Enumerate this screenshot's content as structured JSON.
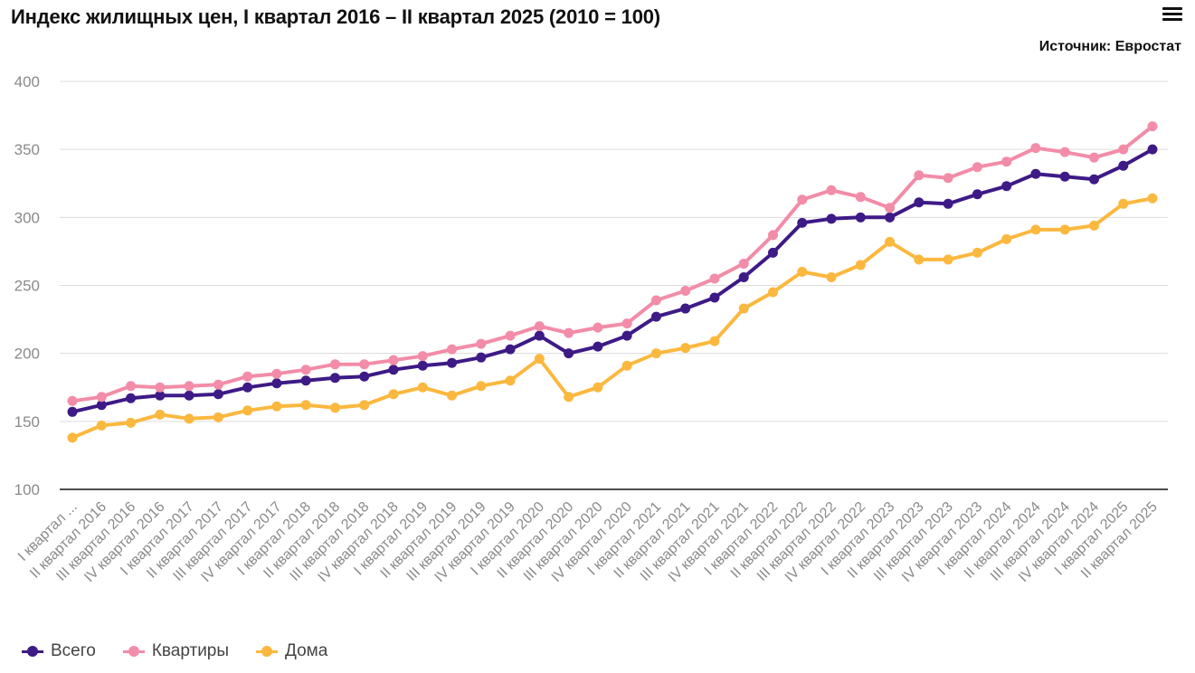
{
  "header": {
    "title": "Индекс жилищных цен, I квартал 2016 – II квартал 2025 (2010 = 100)",
    "source": "Источник: Евростат",
    "menu_icon": "hamburger-menu-icon"
  },
  "legend": [
    {
      "label": "Всего",
      "color": "#3d1a86"
    },
    {
      "label": "Квартиры",
      "color": "#f28ca8"
    },
    {
      "label": "Дома",
      "color": "#fbb83f"
    }
  ],
  "chart_data": {
    "type": "line",
    "title": "Индекс жилищных цен, I квартал 2016 – II квартал 2025 (2010 = 100)",
    "xlabel": "",
    "ylabel": "",
    "ylim": [
      100,
      400
    ],
    "yticks": [
      100,
      150,
      200,
      250,
      300,
      350,
      400
    ],
    "grid": true,
    "legend_position": "bottom-left",
    "categories": [
      "I квартал ...",
      "II квартал 2016",
      "III квартал 2016",
      "IV квартал 2016",
      "I квартал 2017",
      "II квартал 2017",
      "III квартал 2017",
      "IV квартал 2017",
      "I квартал 2018",
      "II квартал 2018",
      "III квартал 2018",
      "IV квартал 2018",
      "I квартал 2019",
      "II квартал 2019",
      "III квартал 2019",
      "IV квартал 2019",
      "I квартал 2020",
      "II квартал 2020",
      "III квартал 2020",
      "IV квартал 2020",
      "I квартал 2021",
      "II квартал 2021",
      "III квартал 2021",
      "IV квартал 2021",
      "I квартал 2022",
      "II квартал 2022",
      "III квартал 2022",
      "IV квартал 2022",
      "I квартал 2023",
      "II квартал 2023",
      "III квартал 2023",
      "IV квартал 2023",
      "I квартал 2024",
      "II квартал 2024",
      "III квартал 2024",
      "IV квартал 2024",
      "I квартал 2025",
      "II квартал 2025"
    ],
    "series": [
      {
        "name": "Всего",
        "color": "#3d1a86",
        "values": [
          157,
          162,
          167,
          169,
          169,
          170,
          175,
          178,
          180,
          182,
          183,
          188,
          191,
          193,
          197,
          203,
          213,
          200,
          205,
          213,
          227,
          233,
          241,
          256,
          274,
          296,
          299,
          300,
          300,
          311,
          310,
          317,
          323,
          332,
          330,
          328,
          338,
          350
        ]
      },
      {
        "name": "Квартиры",
        "color": "#f28ca8",
        "values": [
          165,
          168,
          176,
          175,
          176,
          177,
          183,
          185,
          188,
          192,
          192,
          195,
          198,
          203,
          207,
          213,
          220,
          215,
          219,
          222,
          239,
          246,
          255,
          266,
          287,
          313,
          320,
          315,
          307,
          331,
          329,
          337,
          341,
          351,
          348,
          344,
          350,
          367
        ]
      },
      {
        "name": "Дома",
        "color": "#fbb83f",
        "values": [
          138,
          147,
          149,
          155,
          152,
          153,
          158,
          161,
          162,
          160,
          162,
          170,
          175,
          169,
          176,
          180,
          196,
          168,
          175,
          191,
          200,
          204,
          209,
          233,
          245,
          260,
          256,
          265,
          282,
          269,
          269,
          274,
          284,
          291,
          291,
          294,
          310,
          314
        ]
      }
    ]
  }
}
